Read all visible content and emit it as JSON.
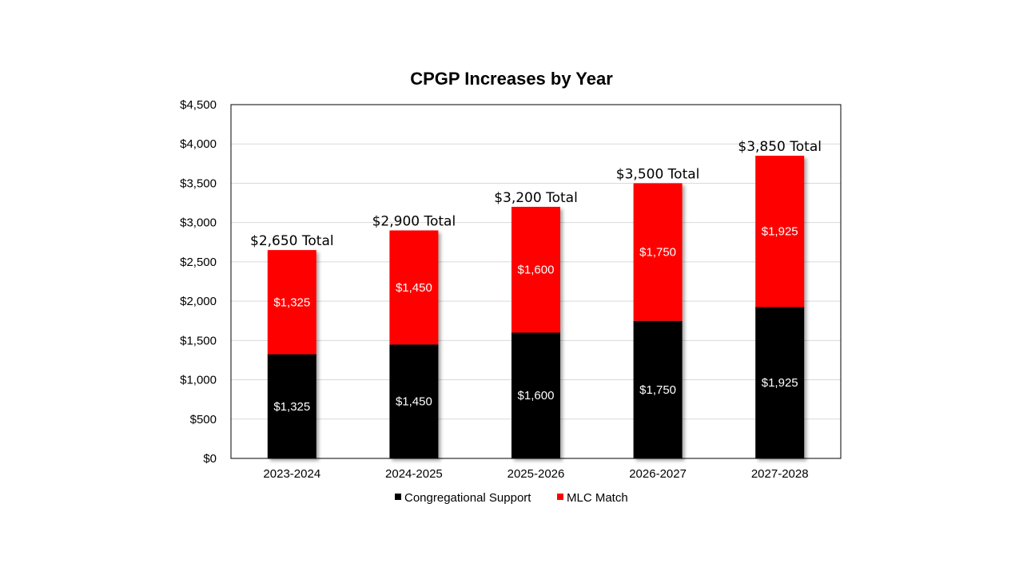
{
  "chart_data": {
    "type": "bar",
    "stacked": true,
    "title": "CPGP Increases by Year",
    "categories": [
      "2023-2024",
      "2024-2025",
      "2025-2026",
      "2026-2027",
      "2027-2028"
    ],
    "series": [
      {
        "name": "Congregational Support",
        "color": "#000000",
        "values": [
          1325,
          1450,
          1600,
          1750,
          1925
        ],
        "labels": [
          "$1,325",
          "$1,450",
          "$1,600",
          "$1,750",
          "$1,925"
        ]
      },
      {
        "name": "MLC Match",
        "color": "#ff0000",
        "values": [
          1325,
          1450,
          1600,
          1750,
          1925
        ],
        "labels": [
          "$1,325",
          "$1,450",
          "$1,600",
          "$1,750",
          "$1,925"
        ]
      }
    ],
    "totals": [
      "$2,650 Total",
      "$2,900 Total",
      "$3,200 Total",
      "$3,500 Total",
      "$3,850 Total"
    ],
    "ylim": [
      0,
      4500
    ],
    "yticks": [
      0,
      500,
      1000,
      1500,
      2000,
      2500,
      3000,
      3500,
      4000,
      4500
    ],
    "ytick_labels": [
      "$0",
      "$500",
      "$1,000",
      "$1,500",
      "$2,000",
      "$2,500",
      "$3,000",
      "$3,500",
      "$4,000",
      "$4,500"
    ],
    "xlabel": "",
    "ylabel": "",
    "grid": true,
    "legend_position": "bottom"
  }
}
